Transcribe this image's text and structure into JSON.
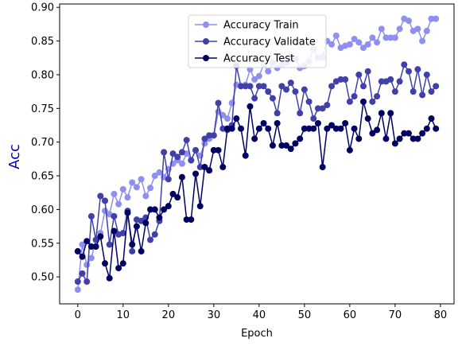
{
  "chart_data": {
    "type": "line",
    "xlabel": "Epoch",
    "ylabel": "Acc",
    "xlim": [
      -4,
      83
    ],
    "ylim": [
      0.46,
      0.905
    ],
    "xticks": [
      0,
      10,
      20,
      30,
      40,
      50,
      60,
      70,
      80
    ],
    "yticks": [
      0.5,
      0.55,
      0.6,
      0.65,
      0.7,
      0.75,
      0.8,
      0.85,
      0.9
    ],
    "x": [
      0,
      1,
      2,
      3,
      4,
      5,
      6,
      7,
      8,
      9,
      10,
      11,
      12,
      13,
      14,
      15,
      16,
      17,
      18,
      19,
      20,
      21,
      22,
      23,
      24,
      25,
      26,
      27,
      28,
      29,
      30,
      31,
      32,
      33,
      34,
      35,
      36,
      37,
      38,
      39,
      40,
      41,
      42,
      43,
      44,
      45,
      46,
      47,
      48,
      49,
      50,
      51,
      52,
      53,
      54,
      55,
      56,
      57,
      58,
      59,
      60,
      61,
      62,
      63,
      64,
      65,
      66,
      67,
      68,
      69,
      70,
      71,
      72,
      73,
      74,
      75,
      76,
      77,
      78,
      79
    ],
    "grid": false,
    "legend_position": "upper center",
    "series": [
      {
        "name": "Accuracy Train",
        "color": "#8f8fef",
        "values": [
          0.481,
          0.548,
          0.518,
          0.528,
          0.555,
          0.565,
          0.598,
          0.593,
          0.623,
          0.608,
          0.63,
          0.618,
          0.64,
          0.633,
          0.645,
          0.62,
          0.632,
          0.65,
          0.655,
          0.648,
          0.66,
          0.668,
          0.673,
          0.668,
          0.683,
          0.673,
          0.688,
          0.68,
          0.698,
          0.705,
          0.71,
          0.745,
          0.74,
          0.735,
          0.758,
          0.785,
          0.783,
          0.785,
          0.808,
          0.793,
          0.798,
          0.815,
          0.805,
          0.818,
          0.81,
          0.815,
          0.818,
          0.825,
          0.823,
          0.81,
          0.813,
          0.82,
          0.838,
          0.825,
          0.826,
          0.85,
          0.845,
          0.858,
          0.84,
          0.843,
          0.845,
          0.853,
          0.848,
          0.84,
          0.845,
          0.855,
          0.848,
          0.868,
          0.855,
          0.855,
          0.855,
          0.868,
          0.883,
          0.88,
          0.865,
          0.868,
          0.85,
          0.865,
          0.883,
          0.883
        ]
      },
      {
        "name": "Accuracy Validate",
        "color": "#4040a8",
        "values": [
          0.493,
          0.505,
          0.493,
          0.59,
          0.555,
          0.62,
          0.613,
          0.548,
          0.59,
          0.563,
          0.565,
          0.598,
          0.538,
          0.585,
          0.583,
          0.588,
          0.555,
          0.563,
          0.583,
          0.685,
          0.645,
          0.683,
          0.678,
          0.685,
          0.703,
          0.673,
          0.688,
          0.663,
          0.705,
          0.71,
          0.71,
          0.758,
          0.72,
          0.718,
          0.725,
          0.813,
          0.783,
          0.783,
          0.783,
          0.765,
          0.783,
          0.783,
          0.775,
          0.765,
          0.743,
          0.783,
          0.778,
          0.788,
          0.775,
          0.743,
          0.778,
          0.76,
          0.735,
          0.75,
          0.75,
          0.755,
          0.783,
          0.79,
          0.793,
          0.793,
          0.76,
          0.768,
          0.8,
          0.783,
          0.805,
          0.76,
          0.768,
          0.79,
          0.79,
          0.793,
          0.775,
          0.79,
          0.815,
          0.805,
          0.775,
          0.808,
          0.77,
          0.8,
          0.775,
          0.783
        ]
      },
      {
        "name": "Accuracy Test",
        "color": "#000060",
        "values": [
          0.538,
          0.53,
          0.553,
          0.545,
          0.545,
          0.56,
          0.52,
          0.498,
          0.568,
          0.513,
          0.52,
          0.595,
          0.548,
          0.575,
          0.538,
          0.58,
          0.6,
          0.6,
          0.588,
          0.6,
          0.605,
          0.623,
          0.618,
          0.648,
          0.585,
          0.585,
          0.653,
          0.605,
          0.663,
          0.658,
          0.688,
          0.688,
          0.663,
          0.72,
          0.72,
          0.735,
          0.72,
          0.68,
          0.753,
          0.705,
          0.72,
          0.728,
          0.72,
          0.695,
          0.728,
          0.695,
          0.695,
          0.69,
          0.698,
          0.705,
          0.72,
          0.72,
          0.72,
          0.728,
          0.663,
          0.72,
          0.725,
          0.72,
          0.72,
          0.728,
          0.688,
          0.72,
          0.705,
          0.76,
          0.735,
          0.713,
          0.718,
          0.743,
          0.705,
          0.743,
          0.698,
          0.705,
          0.713,
          0.713,
          0.705,
          0.705,
          0.713,
          0.72,
          0.735,
          0.72
        ]
      }
    ]
  }
}
